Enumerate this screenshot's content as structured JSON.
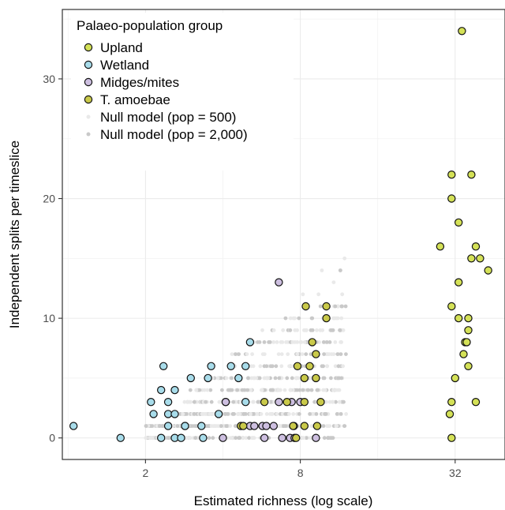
{
  "chart_data": {
    "type": "scatter",
    "xlabel": "Estimated richness (log scale)",
    "ylabel": "Independent splits per timeslice",
    "x_scale": "log2",
    "xlim": [
      0.95,
      50
    ],
    "ylim": [
      -1.8,
      35.8
    ],
    "x_ticks": [
      2,
      8,
      32
    ],
    "y_ticks": [
      0,
      10,
      20,
      30
    ],
    "grid": true,
    "legend": {
      "title": "Palaeo-population group",
      "position": "top-left",
      "entries": [
        {
          "label": "Upland",
          "color": "#d4e157",
          "marker": "circle-outlined"
        },
        {
          "label": "Wetland",
          "color": "#a8dcea",
          "marker": "circle-outlined"
        },
        {
          "label": "Midges/mites",
          "color": "#cdbfe0",
          "marker": "circle-outlined"
        },
        {
          "label": "T. amoebae",
          "color": "#c9c94a",
          "marker": "circle-outlined"
        },
        {
          "label": "Null model (pop = 500)",
          "color": "#e9e9e9",
          "marker": "dot"
        },
        {
          "label": "Null model (pop = 2,000)",
          "color": "#c9c9c9",
          "marker": "dot"
        }
      ]
    },
    "series": [
      {
        "name": "Upland",
        "color": "#d4e157",
        "points": [
          [
            34.0,
            34
          ],
          [
            31.0,
            22
          ],
          [
            37.0,
            22
          ],
          [
            31.0,
            20
          ],
          [
            33.0,
            18
          ],
          [
            28.0,
            16
          ],
          [
            38.5,
            16
          ],
          [
            37.0,
            15
          ],
          [
            40.0,
            15
          ],
          [
            43.0,
            14
          ],
          [
            33.0,
            13
          ],
          [
            31.0,
            11
          ],
          [
            33.0,
            10
          ],
          [
            36.0,
            10
          ],
          [
            36.0,
            9
          ],
          [
            35.0,
            8
          ],
          [
            35.5,
            8
          ],
          [
            34.5,
            7
          ],
          [
            36.0,
            6
          ],
          [
            32.0,
            5
          ],
          [
            31.0,
            3
          ],
          [
            38.5,
            3
          ],
          [
            30.5,
            2
          ],
          [
            31.0,
            0
          ]
        ]
      },
      {
        "name": "Wetland",
        "color": "#a8dcea",
        "points": [
          [
            1.05,
            1
          ],
          [
            1.6,
            0
          ],
          [
            5.1,
            8
          ],
          [
            2.35,
            6
          ],
          [
            3.6,
            6
          ],
          [
            4.3,
            6
          ],
          [
            4.9,
            6
          ],
          [
            3.0,
            5
          ],
          [
            3.5,
            5
          ],
          [
            4.6,
            5
          ],
          [
            2.3,
            4
          ],
          [
            2.6,
            4
          ],
          [
            2.1,
            3
          ],
          [
            2.45,
            3
          ],
          [
            2.85,
            1
          ],
          [
            3.3,
            1
          ],
          [
            4.1,
            3
          ],
          [
            4.9,
            3
          ],
          [
            2.15,
            2
          ],
          [
            2.45,
            2
          ],
          [
            2.6,
            2
          ],
          [
            3.85,
            2
          ],
          [
            2.45,
            1
          ],
          [
            2.85,
            1
          ],
          [
            2.3,
            0
          ],
          [
            2.6,
            0
          ],
          [
            2.75,
            0
          ],
          [
            3.35,
            0
          ]
        ]
      },
      {
        "name": "Midges/mites",
        "color": "#cdbfe0",
        "points": [
          [
            6.6,
            13
          ],
          [
            4.1,
            3
          ],
          [
            6.6,
            3
          ],
          [
            5.1,
            1
          ],
          [
            5.3,
            1
          ],
          [
            5.7,
            1
          ],
          [
            5.9,
            1
          ],
          [
            4.0,
            0
          ],
          [
            5.8,
            0
          ],
          [
            6.8,
            0
          ],
          [
            7.3,
            0
          ],
          [
            7.6,
            0
          ],
          [
            7.4,
            3
          ],
          [
            7.55,
            1
          ],
          [
            8.0,
            3
          ],
          [
            6.3,
            1
          ],
          [
            9.2,
            0
          ]
        ]
      },
      {
        "name": "T. amoebae",
        "color": "#c9c94a",
        "points": [
          [
            8.4,
            11
          ],
          [
            10.1,
            11
          ],
          [
            10.1,
            10
          ],
          [
            8.9,
            8
          ],
          [
            9.2,
            7
          ],
          [
            8.7,
            6
          ],
          [
            7.8,
            6
          ],
          [
            8.3,
            5
          ],
          [
            9.2,
            5
          ],
          [
            5.8,
            3
          ],
          [
            7.1,
            3
          ],
          [
            8.3,
            3
          ],
          [
            9.6,
            3
          ],
          [
            4.7,
            1
          ],
          [
            4.8,
            1
          ],
          [
            7.5,
            1
          ],
          [
            8.3,
            1
          ],
          [
            9.3,
            1
          ],
          [
            7.7,
            0
          ]
        ]
      }
    ]
  }
}
